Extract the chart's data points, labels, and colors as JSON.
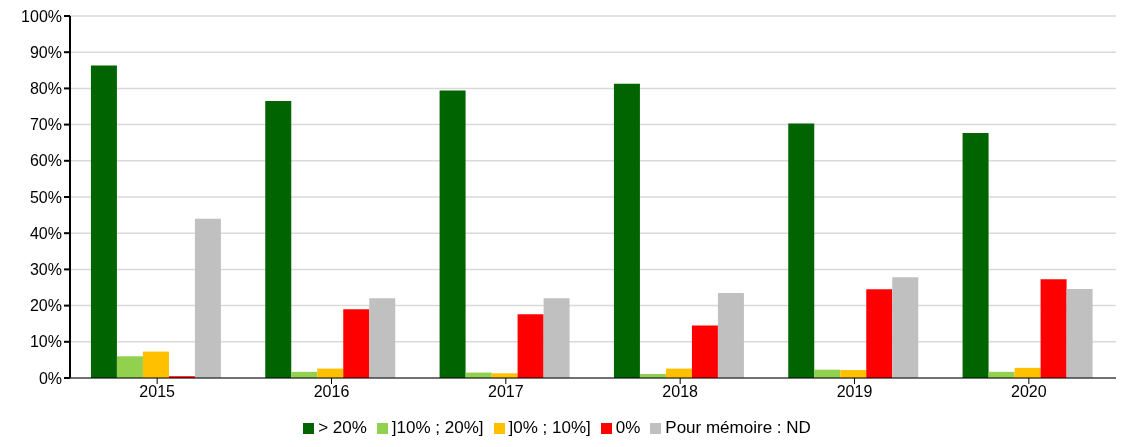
{
  "chart_data": {
    "type": "bar",
    "categories": [
      "2015",
      "2016",
      "2017",
      "2018",
      "2019",
      "2020"
    ],
    "series": [
      {
        "name": "> 20%",
        "color": "#006400",
        "values": [
          86.3,
          76.5,
          79.4,
          81.3,
          70.3,
          67.7
        ]
      },
      {
        "name": "]10% ; 20%]",
        "color": "#92d050",
        "values": [
          6,
          1.7,
          1.5,
          1.1,
          2.3,
          1.7
        ]
      },
      {
        "name": "]0% ; 10%]",
        "color": "#ffc000",
        "values": [
          7.3,
          2.6,
          1.3,
          2.6,
          2.2,
          2.8
        ]
      },
      {
        "name": "0%",
        "color": "#ff0000",
        "values": [
          0.5,
          19,
          17.6,
          14.5,
          24.5,
          27.3
        ]
      },
      {
        "name": "Pour mémoire : ND",
        "color": "#c0c0c0",
        "values": [
          44,
          22,
          22,
          23.5,
          27.8,
          24.6
        ]
      }
    ],
    "ylim": [
      0,
      100
    ],
    "yticks": [
      {
        "value": 0,
        "label": "0%"
      },
      {
        "value": 10,
        "label": "10%"
      },
      {
        "value": 20,
        "label": "20%"
      },
      {
        "value": 30,
        "label": "30%"
      },
      {
        "value": 40,
        "label": "40%"
      },
      {
        "value": 50,
        "label": "50%"
      },
      {
        "value": 60,
        "label": "60%"
      },
      {
        "value": 70,
        "label": "70%"
      },
      {
        "value": 80,
        "label": "80%"
      },
      {
        "value": 90,
        "label": "90%"
      },
      {
        "value": 100,
        "label": "100%"
      }
    ],
    "grid": "y",
    "legend": "bottom"
  }
}
